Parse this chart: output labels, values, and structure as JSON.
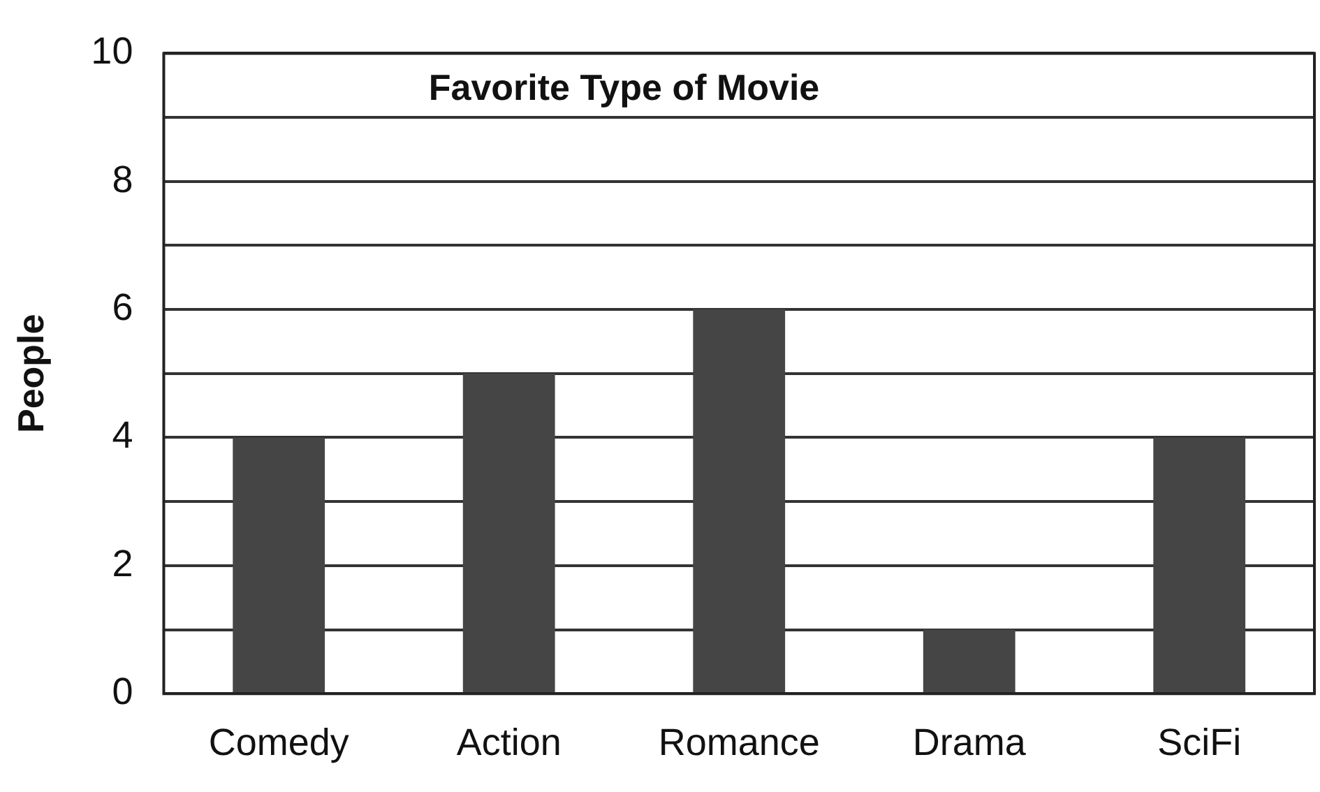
{
  "chart_data": {
    "type": "bar",
    "title": "Favorite Type of Movie",
    "ylabel": "People",
    "categories": [
      "Comedy",
      "Action",
      "Romance",
      "Drama",
      "SciFi"
    ],
    "values": [
      4,
      5,
      6,
      1,
      4
    ],
    "color": "#454545",
    "ylim": [
      0,
      10
    ],
    "yticks": [
      0,
      {
        "value": 1,
        "label": null
      },
      2,
      {
        "value": 3,
        "label": null
      },
      4,
      {
        "value": 5,
        "label": null
      },
      6,
      {
        "value": 7,
        "label": null
      },
      8,
      {
        "value": 9,
        "label": null
      },
      10
    ],
    "grid": "y"
  }
}
